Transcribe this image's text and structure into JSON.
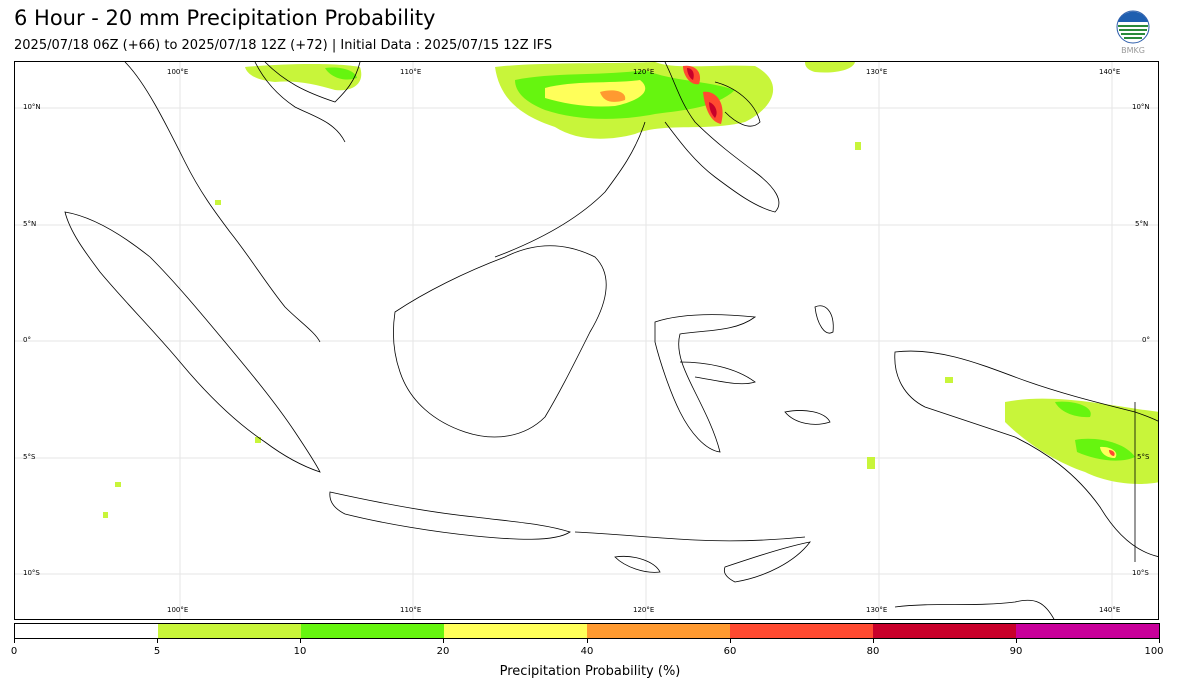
{
  "header": {
    "title": "6 Hour - 20 mm Precipitation Probability",
    "subtitle": "2025/07/18 06Z (+66) to 2025/07/18 12Z (+72) | Initial Data : 2025/07/15 12Z IFS"
  },
  "logo": {
    "text": "BMKG",
    "icon": "bmkg-logo-icon"
  },
  "map": {
    "lon_labels": [
      "100°E",
      "110°E",
      "120°E",
      "130°E",
      "140°E"
    ],
    "lat_labels": [
      "10°N",
      "5°N",
      "0°",
      "5°S",
      "10°S"
    ],
    "gridlines": true
  },
  "colorbar": {
    "title": "Precipitation Probability (%)",
    "tick_labels": [
      "0",
      "5",
      "10",
      "20",
      "40",
      "60",
      "80",
      "90",
      "100"
    ],
    "colors": [
      "#ffffff",
      "#c8f53a",
      "#66f50f",
      "#ffff5a",
      "#ff9a30",
      "#ff4a30",
      "#c8002a",
      "#c8009a"
    ]
  }
}
